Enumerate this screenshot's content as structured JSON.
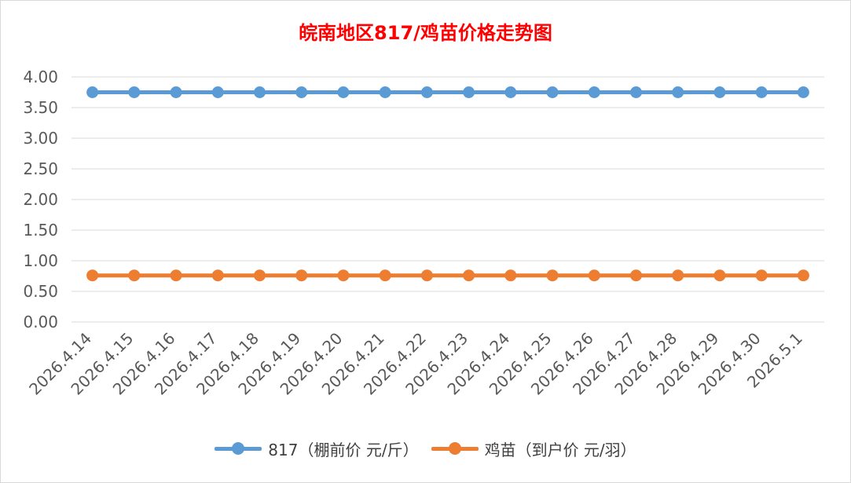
{
  "chart_data": {
    "type": "line",
    "title": "皖南地区817/鸡苗价格走势图",
    "xlabel": "",
    "ylabel": "",
    "categories": [
      "2026.4.14",
      "2026.4.15",
      "2026.4.16",
      "2026.4.17",
      "2026.4.18",
      "2026.4.19",
      "2026.4.20",
      "2026.4.21",
      "2026.4.22",
      "2026.4.23",
      "2026.4.24",
      "2026.4.25",
      "2026.4.26",
      "2026.4.27",
      "2026.4.28",
      "2026.4.29",
      "2026.4.30",
      "2026.5.1"
    ],
    "y_ticks": [
      "0.00",
      "0.50",
      "1.00",
      "1.50",
      "2.00",
      "2.50",
      "3.00",
      "3.50",
      "4.00"
    ],
    "ylim": [
      0,
      4
    ],
    "grid": true,
    "legend_position": "bottom",
    "series": [
      {
        "name": "817（棚前价 元/斤）",
        "color": "#5b9bd5",
        "values": [
          3.75,
          3.75,
          3.75,
          3.75,
          3.75,
          3.75,
          3.75,
          3.75,
          3.75,
          3.75,
          3.75,
          3.75,
          3.75,
          3.75,
          3.75,
          3.75,
          3.75,
          3.75
        ]
      },
      {
        "name": "鸡苗（到户价 元/羽）",
        "color": "#ed7d31",
        "values": [
          0.76,
          0.76,
          0.76,
          0.76,
          0.76,
          0.76,
          0.76,
          0.76,
          0.76,
          0.76,
          0.76,
          0.76,
          0.76,
          0.76,
          0.76,
          0.76,
          0.76,
          0.76
        ]
      }
    ]
  }
}
